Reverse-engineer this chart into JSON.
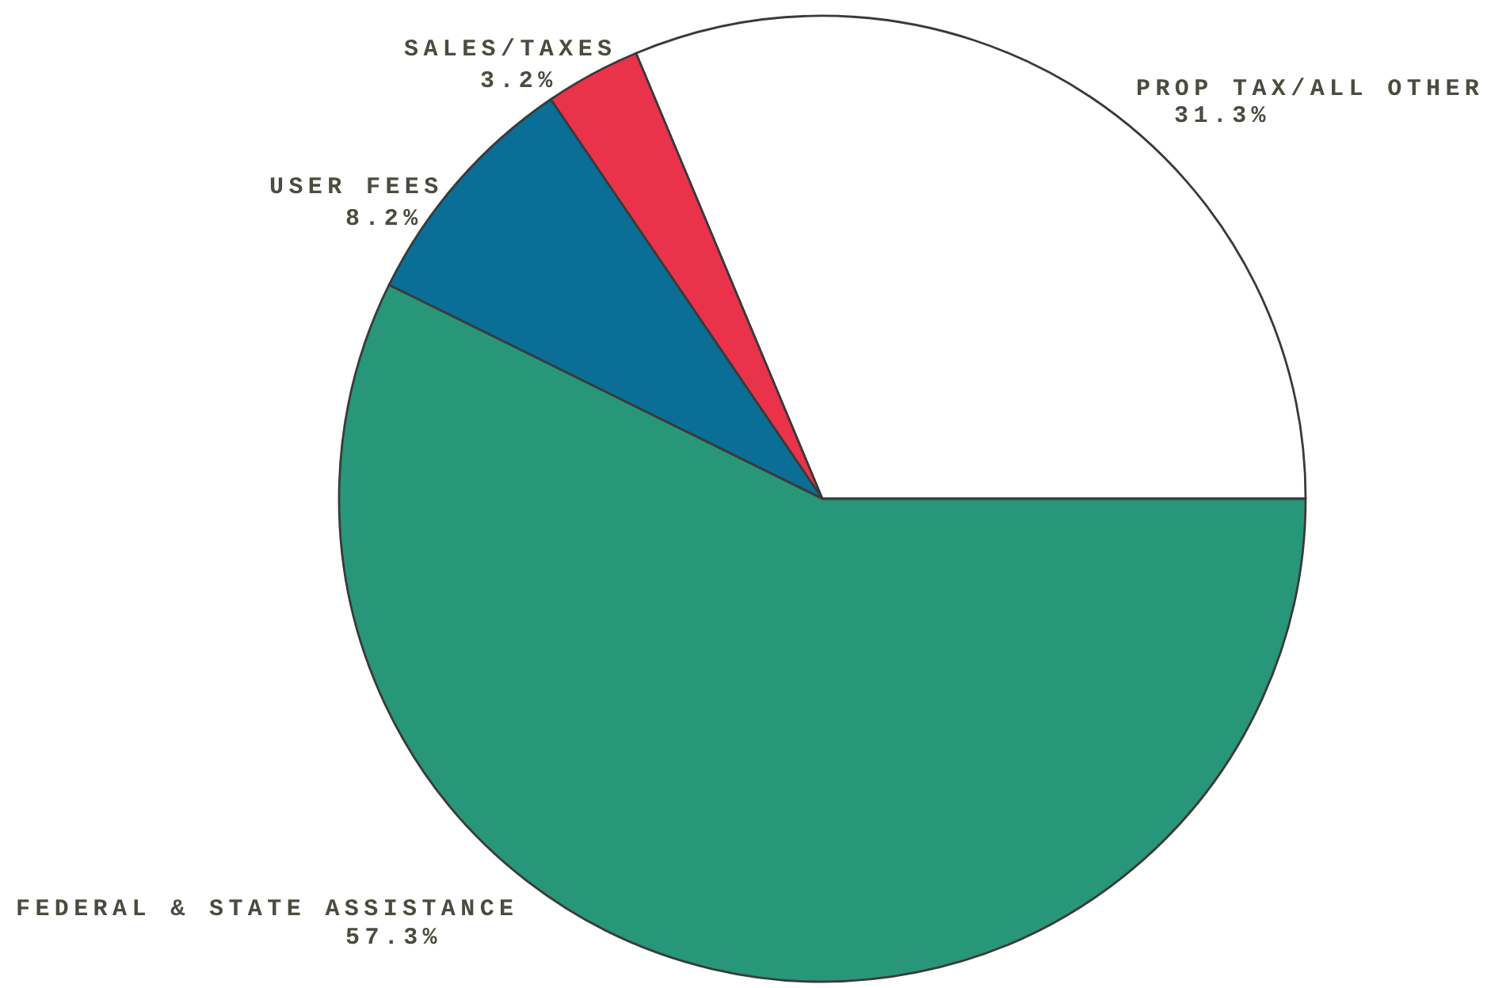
{
  "chart_data": {
    "type": "pie",
    "categories": [
      "PROP TAX/ALL OTHER",
      "SALES/TAXES",
      "USER FEES",
      "FEDERAL & STATE ASSISTANCE"
    ],
    "values": [
      31.3,
      3.2,
      8.2,
      57.3
    ],
    "colors": [
      "#ffffff",
      "#eb324b",
      "#0a6e96",
      "#289678"
    ],
    "value_labels": [
      "31.3%",
      "3.2%",
      "8.2%",
      "57.3%"
    ]
  }
}
